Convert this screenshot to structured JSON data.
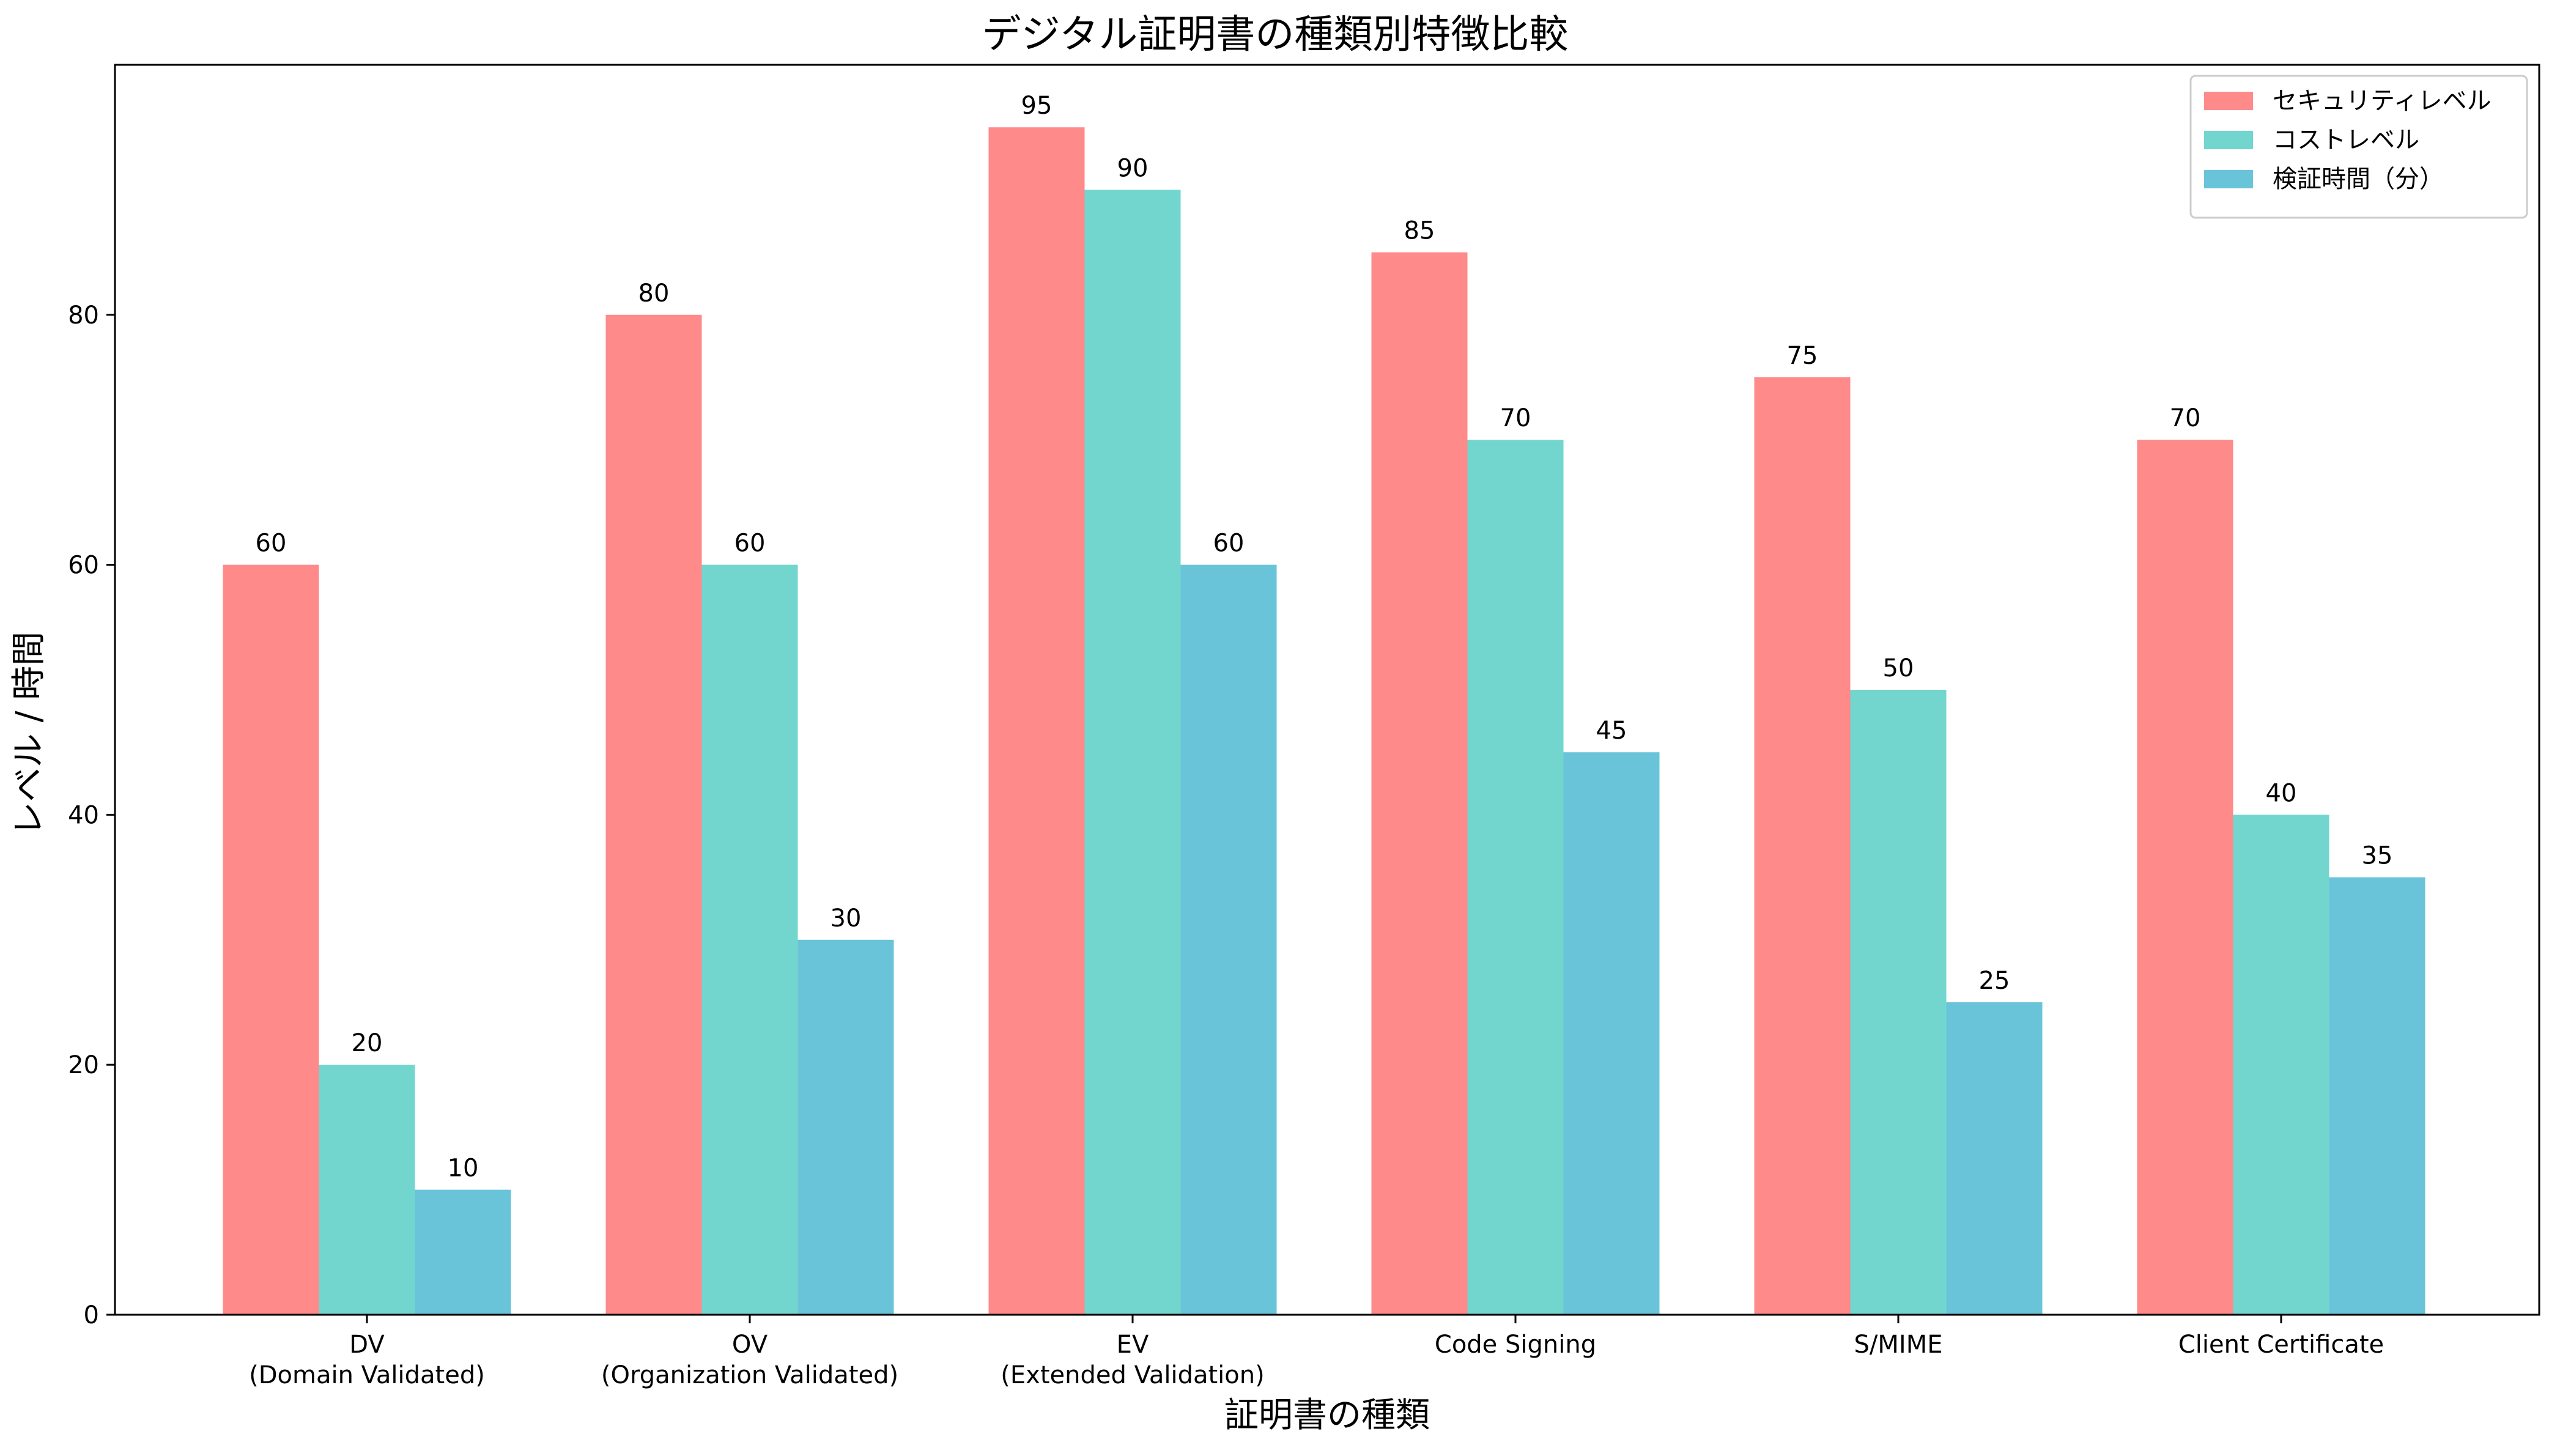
{
  "chart_data": {
    "type": "bar",
    "title": "デジタル証明書の種類別特徴比較",
    "xlabel": "証明書の種類",
    "ylabel": "レベル / 時間",
    "ylim": [
      0,
      100
    ],
    "yticks": [
      0,
      20,
      40,
      60,
      80
    ],
    "grid": false,
    "legend_position": "top-right",
    "categories": [
      [
        "DV",
        "(Domain Validated)"
      ],
      [
        "OV",
        "(Organization Validated)"
      ],
      [
        "EV",
        "(Extended Validation)"
      ],
      [
        "Code Signing"
      ],
      [
        "S/MIME"
      ],
      [
        "Client Certificate"
      ]
    ],
    "series": [
      {
        "name": "セキュリティレベル",
        "color": "#FF8A8A",
        "values": [
          60,
          80,
          95,
          85,
          75,
          70
        ]
      },
      {
        "name": "コストレベル",
        "color": "#72D6CF",
        "values": [
          20,
          60,
          90,
          70,
          50,
          40
        ]
      },
      {
        "name": "検証時間（分）",
        "color": "#6AC4D9",
        "values": [
          10,
          30,
          60,
          45,
          25,
          35
        ]
      }
    ]
  }
}
